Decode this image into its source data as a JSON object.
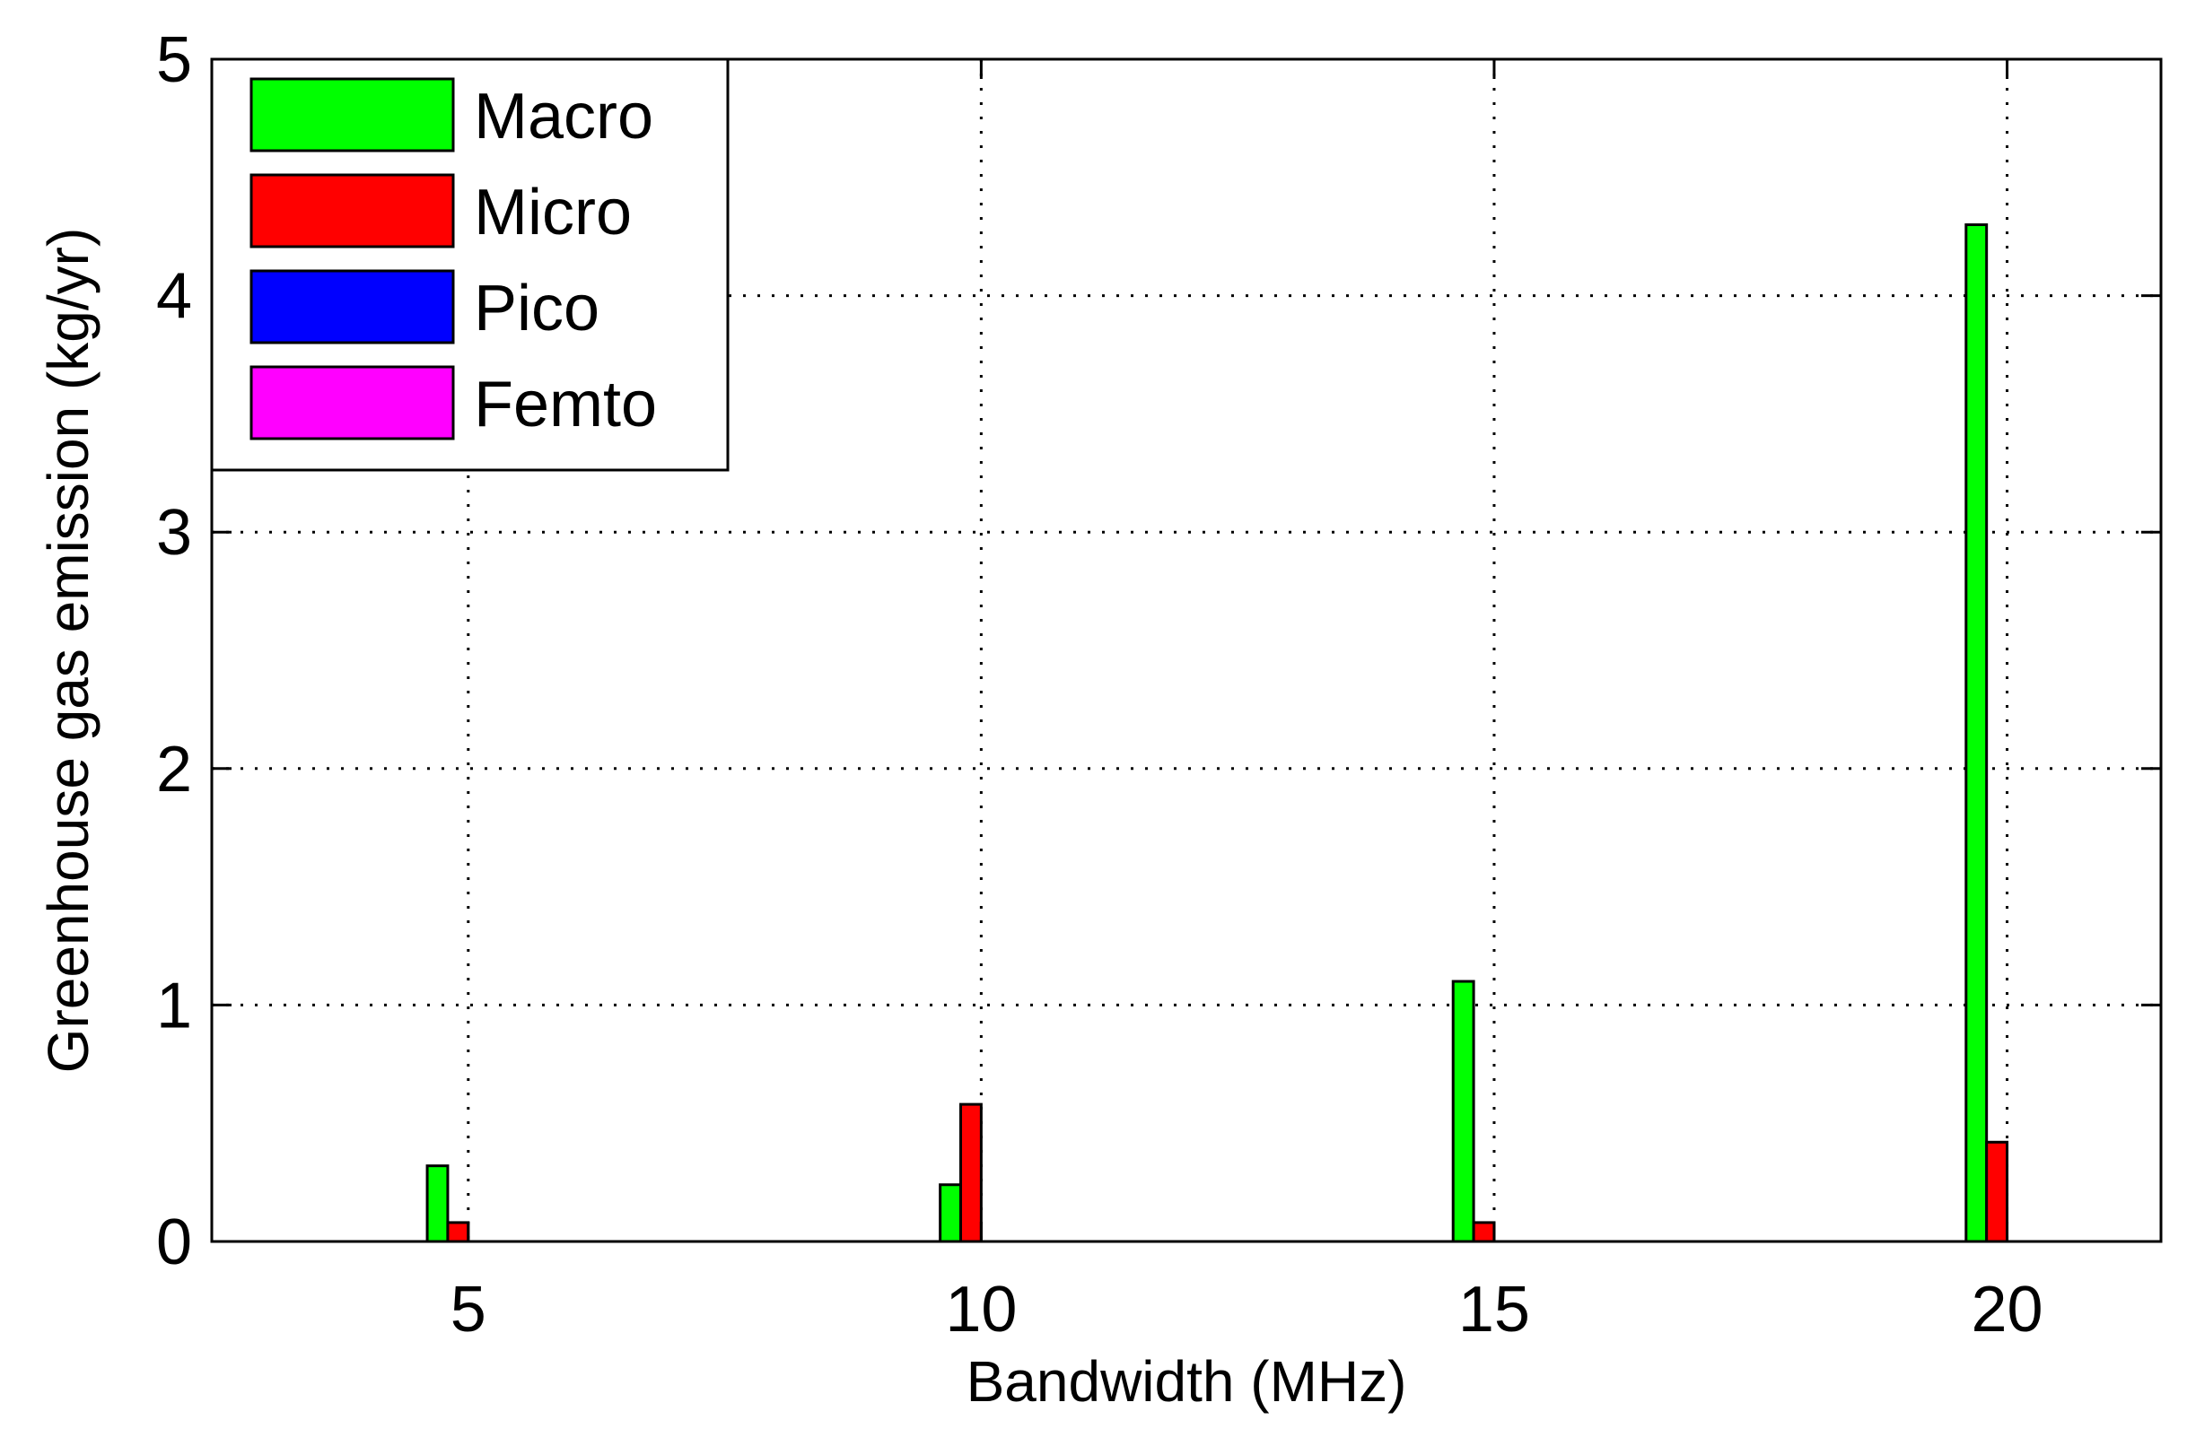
{
  "chart_data": {
    "type": "bar",
    "title": "",
    "xlabel": "Bandwidth (MHz)",
    "ylabel": "Greenhouse gas emission (kg/yr)",
    "categories": [
      "5",
      "10",
      "15",
      "20"
    ],
    "x": [
      5,
      10,
      15,
      20
    ],
    "xlim": [
      2.5,
      21.5
    ],
    "ylim": [
      0,
      5
    ],
    "xticks": [
      5,
      10,
      15,
      20
    ],
    "yticks": [
      0,
      1,
      2,
      3,
      4,
      5
    ],
    "grid": true,
    "legend_position": "top-left",
    "series": [
      {
        "name": "Macro",
        "color": "#00ff00",
        "values": [
          0.32,
          0.24,
          1.1,
          4.3
        ]
      },
      {
        "name": "Micro",
        "color": "#ff0000",
        "values": [
          0.08,
          0.58,
          0.08,
          0.42
        ]
      },
      {
        "name": "Pico",
        "color": "#0000ff",
        "values": [
          0,
          0,
          0,
          0
        ]
      },
      {
        "name": "Femto",
        "color": "#ff00ff",
        "values": [
          0,
          0,
          0,
          0
        ]
      }
    ]
  }
}
